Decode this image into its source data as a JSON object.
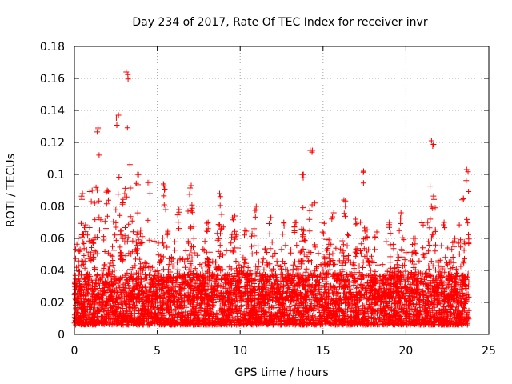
{
  "chart_data": {
    "type": "scatter",
    "title": "Day 234 of 2017, Rate Of TEC Index for receiver invr",
    "xlabel": "GPS time / hours",
    "ylabel": "ROTI / TECUs",
    "xlim": [
      0,
      25
    ],
    "ylim": [
      0,
      0.18
    ],
    "xticks": [
      0,
      5,
      10,
      15,
      20,
      25
    ],
    "xtick_labels": [
      "0",
      "5",
      "10",
      "15",
      "20",
      "25"
    ],
    "yticks": [
      0,
      0.02,
      0.04,
      0.06,
      0.08,
      0.1,
      0.12,
      0.14,
      0.16,
      0.18
    ],
    "ytick_labels": [
      "0",
      "0.02",
      "0.04",
      "0.06",
      "0.08",
      "0.1",
      "0.12",
      "0.14",
      "0.16",
      "0.18"
    ],
    "grid": true,
    "marker": "plus",
    "color": "#ff0000",
    "data_range_x": [
      0,
      23.8
    ],
    "series_envelope": [
      {
        "x": 0.2,
        "peak": 0.06
      },
      {
        "x": 0.5,
        "peak": 0.088
      },
      {
        "x": 1.0,
        "peak": 0.09
      },
      {
        "x": 1.4,
        "peak": 0.129
      },
      {
        "x": 2.0,
        "peak": 0.09
      },
      {
        "x": 2.6,
        "peak": 0.137
      },
      {
        "x": 3.2,
        "peak": 0.164
      },
      {
        "x": 3.8,
        "peak": 0.1
      },
      {
        "x": 4.5,
        "peak": 0.095
      },
      {
        "x": 5.4,
        "peak": 0.094
      },
      {
        "x": 6.3,
        "peak": 0.078
      },
      {
        "x": 7.0,
        "peak": 0.093
      },
      {
        "x": 8.0,
        "peak": 0.07
      },
      {
        "x": 8.8,
        "peak": 0.088
      },
      {
        "x": 9.6,
        "peak": 0.074
      },
      {
        "x": 10.3,
        "peak": 0.065
      },
      {
        "x": 10.9,
        "peak": 0.08
      },
      {
        "x": 11.8,
        "peak": 0.073
      },
      {
        "x": 12.6,
        "peak": 0.07
      },
      {
        "x": 13.3,
        "peak": 0.07
      },
      {
        "x": 13.8,
        "peak": 0.1
      },
      {
        "x": 14.3,
        "peak": 0.115
      },
      {
        "x": 15.0,
        "peak": 0.07
      },
      {
        "x": 15.6,
        "peak": 0.076
      },
      {
        "x": 16.3,
        "peak": 0.084
      },
      {
        "x": 17.0,
        "peak": 0.072
      },
      {
        "x": 17.5,
        "peak": 0.102
      },
      {
        "x": 18.2,
        "peak": 0.064
      },
      {
        "x": 19.0,
        "peak": 0.07
      },
      {
        "x": 19.7,
        "peak": 0.076
      },
      {
        "x": 20.5,
        "peak": 0.06
      },
      {
        "x": 21.0,
        "peak": 0.07
      },
      {
        "x": 21.6,
        "peak": 0.121
      },
      {
        "x": 22.3,
        "peak": 0.07
      },
      {
        "x": 22.9,
        "peak": 0.06
      },
      {
        "x": 23.4,
        "peak": 0.085
      },
      {
        "x": 23.7,
        "peak": 0.103
      }
    ]
  }
}
